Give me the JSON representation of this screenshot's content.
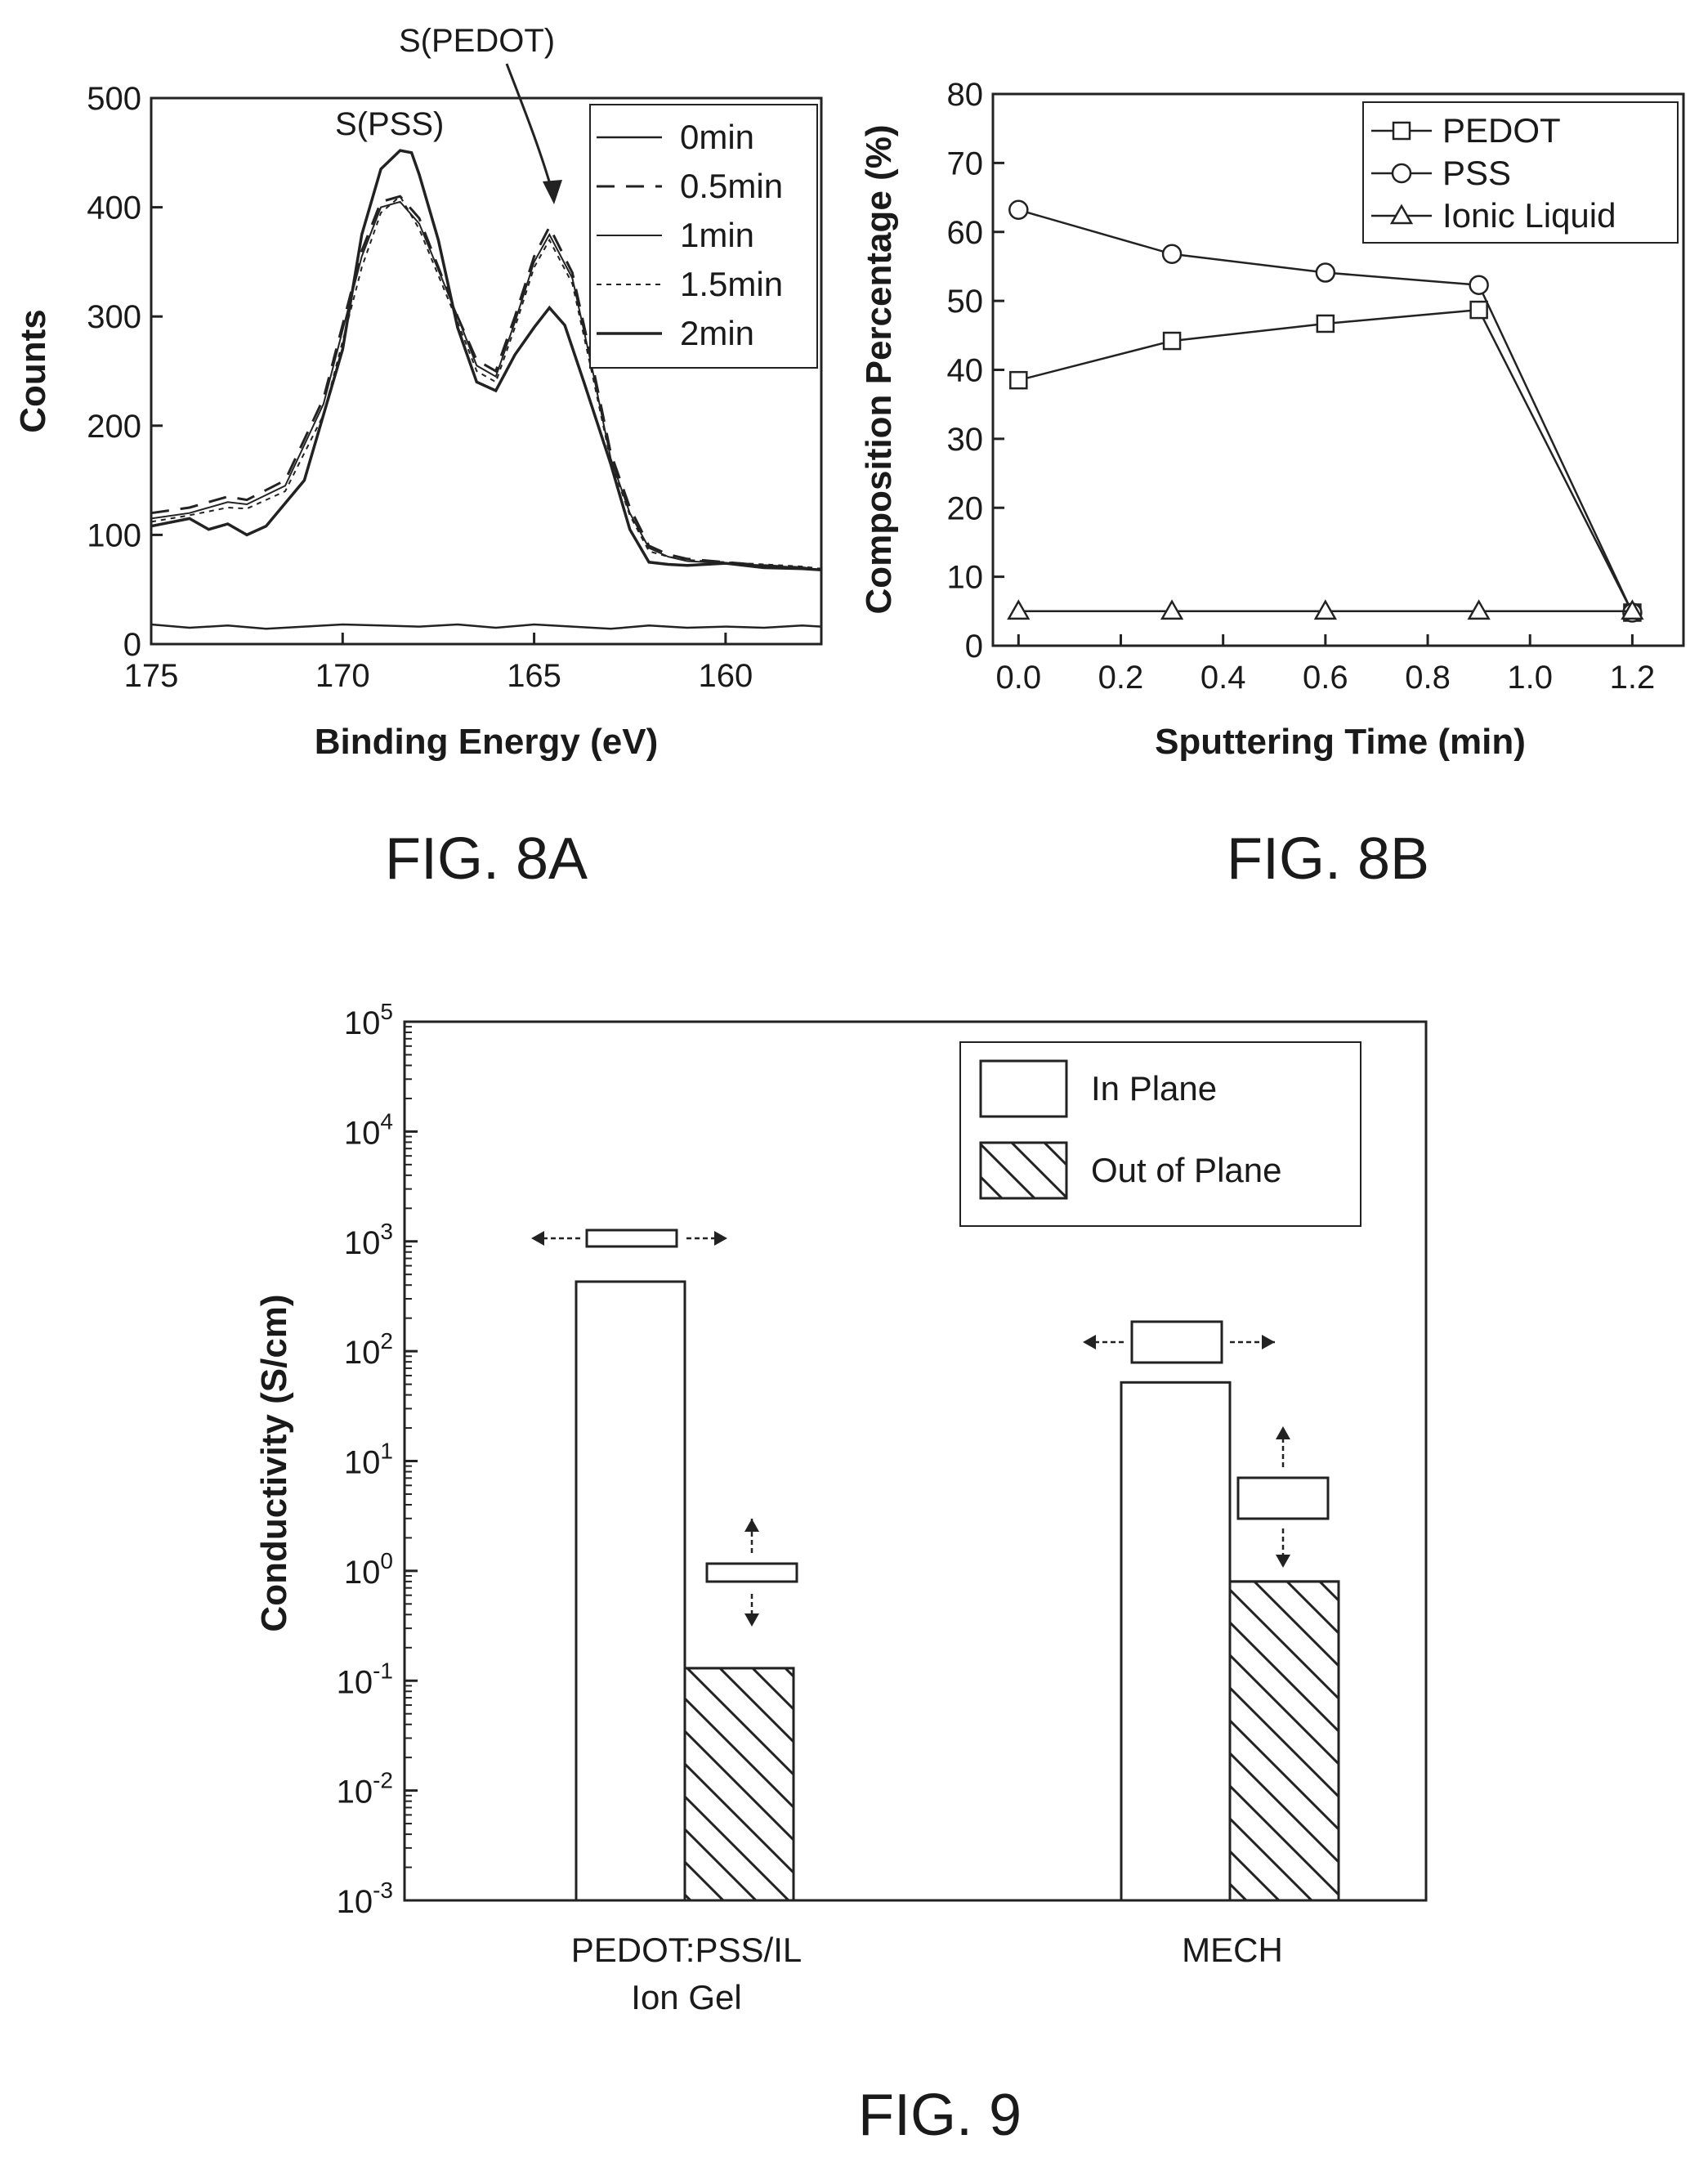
{
  "figures": [
    {
      "id": "8A",
      "caption": "FIG. 8A"
    },
    {
      "id": "8B",
      "caption": "FIG. 8B"
    },
    {
      "id": "9",
      "caption": "FIG. 9"
    }
  ],
  "chart_data": [
    {
      "figure": "FIG. 8A",
      "type": "line",
      "xlabel": "Binding Energy (eV)",
      "ylabel": "Counts",
      "xlim": [
        175,
        157.5
      ],
      "ylim": [
        0,
        500
      ],
      "x_ticks": [
        175,
        170,
        165,
        160
      ],
      "y_ticks": [
        0,
        100,
        200,
        300,
        400,
        500
      ],
      "grid": false,
      "legend_position": "top-right",
      "annotations": [
        {
          "text": "S(PSS)",
          "x": 168.4,
          "y": 455
        },
        {
          "text": "S(PEDOT)",
          "x": 164.6,
          "y": 385
        }
      ],
      "series": [
        {
          "name": "0min",
          "x": [
            175,
            174,
            173,
            172,
            171,
            170,
            169,
            168,
            167,
            166,
            165,
            164,
            163,
            162,
            161,
            160,
            159,
            158,
            157.5
          ],
          "y": [
            18,
            15,
            17,
            14,
            16,
            18,
            17,
            16,
            18,
            15,
            18,
            16,
            14,
            17,
            15,
            16,
            15,
            17,
            16
          ]
        },
        {
          "name": "0.5min",
          "x": [
            175,
            174,
            173,
            172.5,
            171.5,
            170.5,
            169.5,
            169,
            168.5,
            168,
            167,
            166.5,
            166,
            165.5,
            165,
            164.6,
            164,
            163.5,
            163,
            162.5,
            162,
            161.5,
            161,
            160,
            159,
            158,
            157.5
          ],
          "y": [
            120,
            125,
            135,
            132,
            150,
            225,
            360,
            405,
            410,
            390,
            300,
            260,
            250,
            300,
            355,
            382,
            340,
            260,
            175,
            125,
            90,
            82,
            78,
            75,
            72,
            70,
            68
          ]
        },
        {
          "name": "1min",
          "x": [
            175,
            174,
            173,
            172.5,
            171.5,
            170.5,
            169.5,
            169,
            168.5,
            168,
            167,
            166.5,
            166,
            165.5,
            165,
            164.6,
            164,
            163.5,
            163,
            162.5,
            162,
            161.5,
            161,
            160,
            159,
            158,
            157.5
          ],
          "y": [
            115,
            120,
            130,
            128,
            145,
            220,
            355,
            400,
            405,
            385,
            300,
            255,
            245,
            295,
            350,
            375,
            335,
            255,
            170,
            120,
            88,
            80,
            76,
            74,
            72,
            70,
            68
          ]
        },
        {
          "name": "1.5min",
          "x": [
            175,
            174,
            173,
            172.5,
            171.5,
            170.5,
            169.5,
            169,
            168.5,
            168,
            167,
            166.5,
            166,
            165.5,
            165,
            164.6,
            164,
            163.5,
            163,
            162.5,
            162,
            161.5,
            161,
            160,
            159,
            158,
            157.5
          ],
          "y": [
            112,
            118,
            125,
            124,
            140,
            210,
            345,
            395,
            410,
            380,
            295,
            250,
            240,
            290,
            345,
            370,
            330,
            250,
            168,
            118,
            85,
            80,
            77,
            75,
            73,
            71,
            69
          ]
        },
        {
          "name": "2min",
          "x": [
            175,
            174,
            173.5,
            173,
            172.5,
            172,
            171,
            170,
            169.5,
            169,
            168.5,
            168.2,
            168,
            167.5,
            167,
            166.5,
            166,
            165.5,
            165,
            164.6,
            164.2,
            163.7,
            163,
            162.5,
            162,
            161.5,
            161,
            160,
            159,
            158,
            157.5
          ],
          "y": [
            108,
            115,
            105,
            110,
            100,
            108,
            150,
            270,
            375,
            435,
            452,
            450,
            430,
            370,
            290,
            240,
            232,
            265,
            290,
            308,
            292,
            240,
            165,
            105,
            75,
            73,
            72,
            74,
            70,
            69,
            68
          ]
        }
      ]
    },
    {
      "figure": "FIG. 8B",
      "type": "line",
      "xlabel": "Sputtering Time (min)",
      "ylabel": "Composition Percentage (%)",
      "xlim": [
        -0.05,
        1.3
      ],
      "ylim": [
        0,
        80
      ],
      "x_ticks": [
        "0.0",
        "0.2",
        "0.4",
        "0.6",
        "0.8",
        "1.0",
        "1.2"
      ],
      "y_ticks": [
        0,
        10,
        20,
        30,
        40,
        50,
        60,
        70,
        80
      ],
      "grid": false,
      "legend_position": "top-right",
      "series": [
        {
          "name": "PEDOT",
          "marker": "square",
          "x": [
            0.0,
            0.3,
            0.6,
            0.9,
            1.2
          ],
          "y": [
            38.5,
            44.2,
            46.7,
            48.7,
            4.8
          ]
        },
        {
          "name": "PSS",
          "marker": "circle",
          "x": [
            0.0,
            0.3,
            0.6,
            0.9,
            1.2
          ],
          "y": [
            63.2,
            56.8,
            54.1,
            52.3,
            4.8
          ]
        },
        {
          "name": "Ionic Liquid",
          "marker": "triangle",
          "x": [
            0.0,
            0.3,
            0.6,
            0.9,
            1.2
          ],
          "y": [
            5.0,
            5.0,
            5.0,
            5.0,
            5.0
          ]
        }
      ]
    },
    {
      "figure": "FIG. 9",
      "type": "bar",
      "xlabel": "",
      "ylabel": "Conductivity (S/cm)",
      "y_scale": "log",
      "ylim": [
        0.001,
        100000
      ],
      "y_tick_exponents": [
        -3,
        -2,
        -1,
        0,
        1,
        2,
        3,
        4,
        5
      ],
      "grid": false,
      "legend_position": "top-right",
      "categories": [
        [
          "PEDOT:PSS/IL",
          "Ion Gel"
        ],
        [
          "MECH"
        ]
      ],
      "series": [
        {
          "name": "In Plane",
          "pattern": "none",
          "values": [
            430,
            52
          ]
        },
        {
          "name": "Out of Plane",
          "pattern": "hatch",
          "values": [
            0.13,
            0.8
          ]
        }
      ]
    }
  ]
}
